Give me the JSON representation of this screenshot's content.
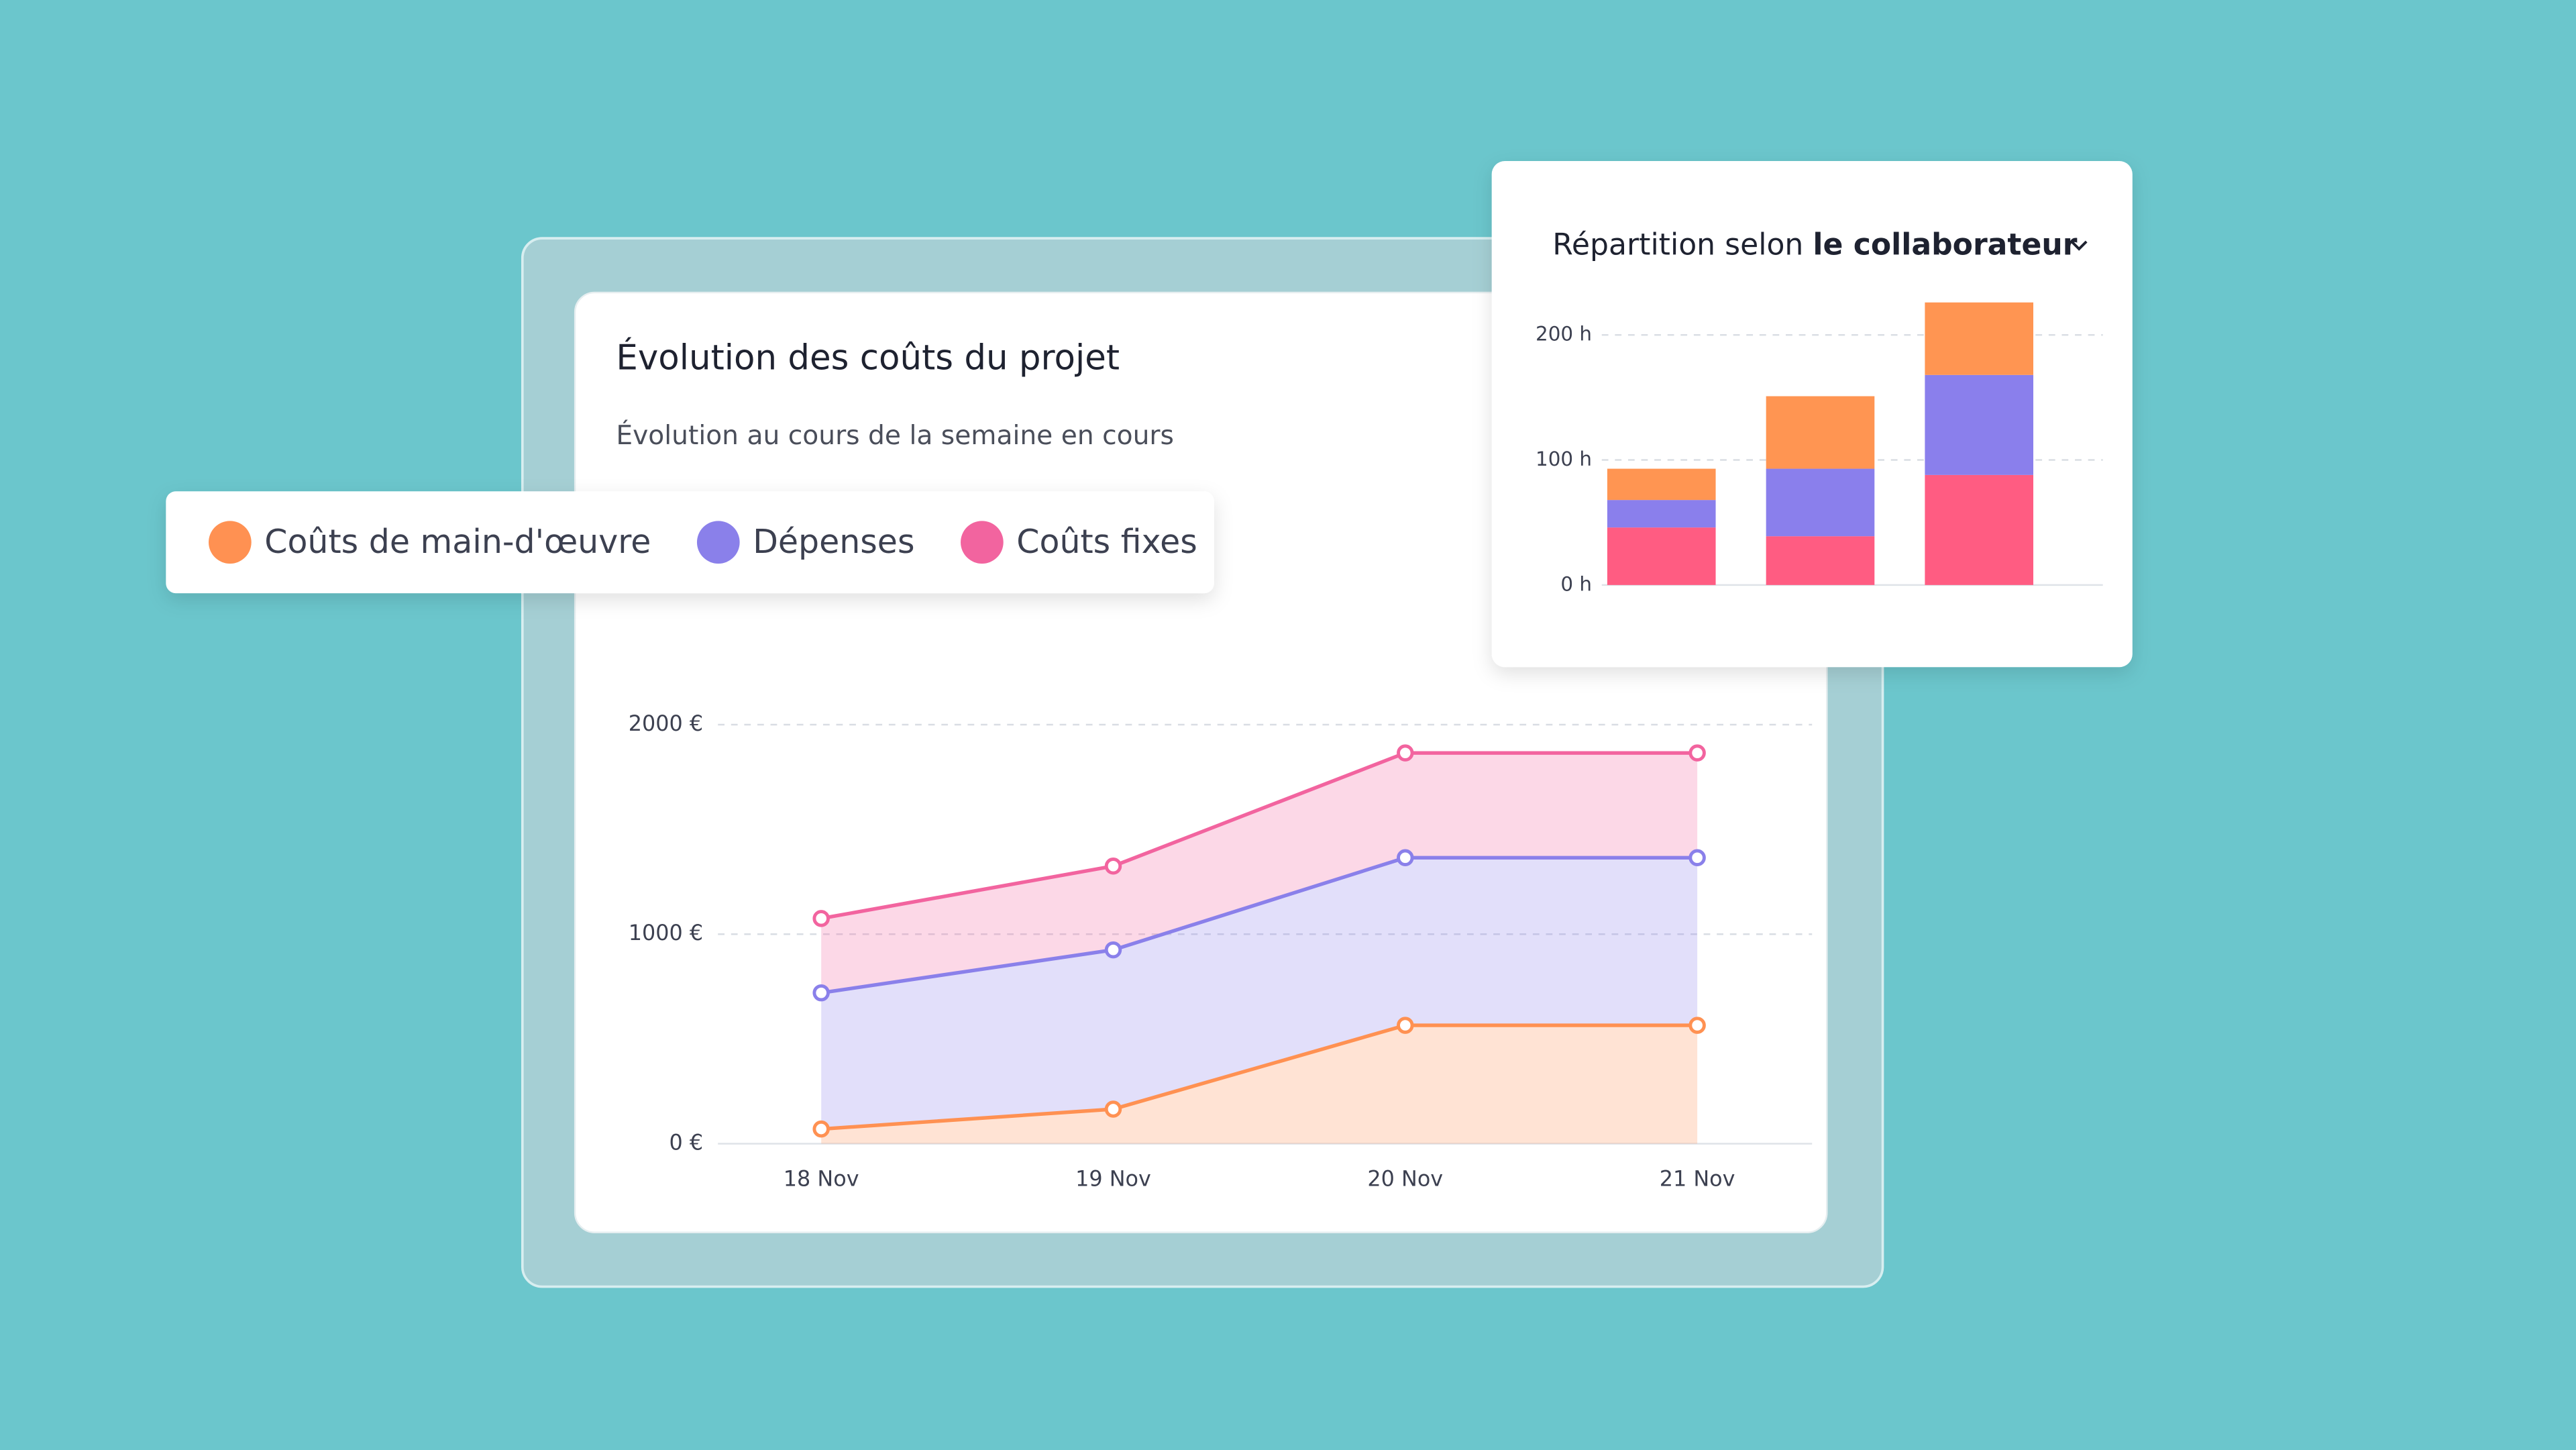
{
  "chart_data": [
    {
      "type": "area",
      "stacked": true,
      "title": "Évolution des coûts du projet",
      "subtitle": "Évolution au cours de la semaine en cours",
      "categories": [
        "18 Nov",
        "19 Nov",
        "20 Nov",
        "21 Nov"
      ],
      "series": [
        {
          "name": "Coûts de main-d'œuvre",
          "color": "#ff9152",
          "values": [
            70,
            165,
            565,
            565
          ]
        },
        {
          "name": "Dépenses",
          "color": "#8a80ea",
          "values": [
            650,
            760,
            800,
            800
          ]
        },
        {
          "name": "Coûts fixes",
          "color": "#f2649f",
          "values": [
            355,
            400,
            500,
            500
          ]
        }
      ],
      "ylim": [
        0,
        3000
      ],
      "yticks": [
        {
          "value": 0,
          "label": "0 €"
        },
        {
          "value": 1000,
          "label": "1000 €"
        },
        {
          "value": 2000,
          "label": "2000 €"
        }
      ],
      "grid": true
    },
    {
      "type": "bar",
      "stacked": true,
      "title": "Répartition selon",
      "title_emphasis": "le collaborateur",
      "categories": [
        null,
        null,
        null
      ],
      "series": [
        {
          "color": "#ff5c82",
          "values": [
            46,
            39,
            88
          ]
        },
        {
          "color": "#8a7fec",
          "values": [
            22,
            54,
            80
          ]
        },
        {
          "color": "#ff9552",
          "values": [
            25,
            58,
            58
          ]
        }
      ],
      "ylim": [
        0,
        230
      ],
      "yticks": [
        {
          "value": 0,
          "label": "0 h"
        },
        {
          "value": 100,
          "label": "100 h"
        },
        {
          "value": 200,
          "label": "200 h"
        }
      ],
      "grid": true
    }
  ]
}
